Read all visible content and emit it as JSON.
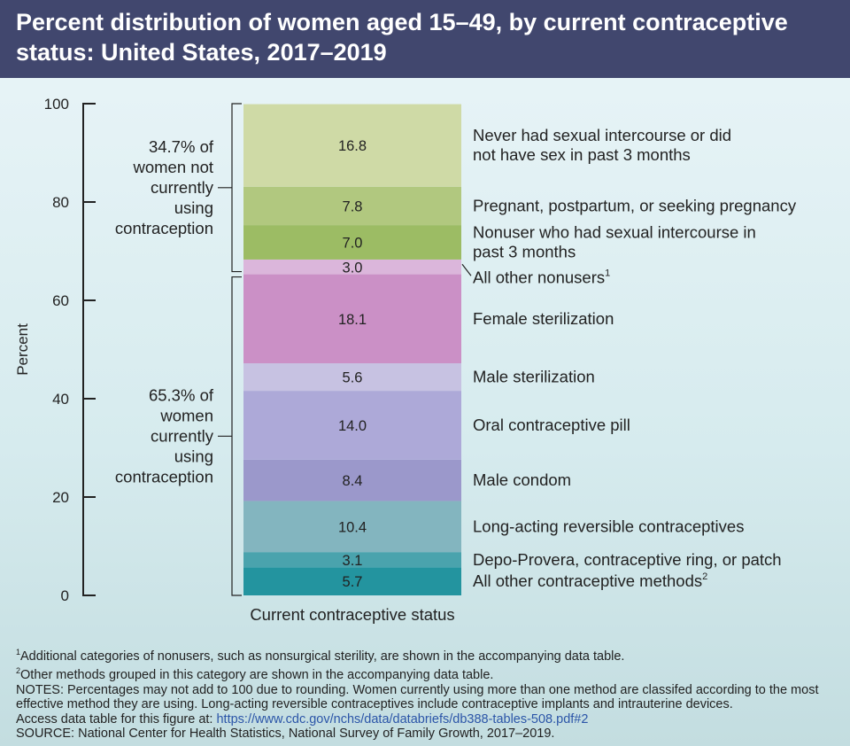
{
  "header": {
    "title": "Percent distribution of women aged 15–49, by current contraceptive status: United States, 2017–2019"
  },
  "chart_data": {
    "type": "bar",
    "stacked": true,
    "ylabel": "Percent",
    "xlabel": "Current contraceptive status",
    "ylim": [
      0,
      100
    ],
    "yticks": [
      0,
      20,
      40,
      60,
      80,
      100
    ],
    "segments": [
      {
        "name": "All other contraceptive methods",
        "sup": "2",
        "value": 5.7,
        "label": "5.7",
        "color": "#23949f"
      },
      {
        "name": "Depo-Provera, contraceptive ring, or patch",
        "value": 3.1,
        "label": "3.1",
        "color": "#4aa3ad"
      },
      {
        "name": "Long-acting reversible contraceptives",
        "value": 10.4,
        "label": "10.4",
        "color": "#83b5bf"
      },
      {
        "name": "Male condom",
        "value": 8.4,
        "label": "8.4",
        "color": "#9b98cb"
      },
      {
        "name": "Oral contraceptive pill",
        "value": 14.0,
        "label": "14.0",
        "color": "#ada9d8"
      },
      {
        "name": "Male sterilization",
        "value": 5.6,
        "label": "5.6",
        "color": "#c7c2e2"
      },
      {
        "name": "Female sterilization",
        "value": 18.1,
        "label": "18.1",
        "color": "#cb90c6"
      },
      {
        "name": "All other nonusers",
        "sup": "1",
        "value": 3.0,
        "label": "3.0",
        "color": "#dbb6db"
      },
      {
        "name": "Nonuser who had sexual intercourse in past 3 months",
        "value": 7.0,
        "label": "7.0",
        "color": "#9cbc64"
      },
      {
        "name": "Pregnant, postpartum, or seeking pregnancy",
        "value": 7.8,
        "label": "7.8",
        "color": "#b1c87f"
      },
      {
        "name": "Never had sexual intercourse or did not have sex in past 3 months",
        "value": 16.8,
        "label": "16.8",
        "color": "#cfdaa6"
      }
    ],
    "groups": [
      {
        "label": "34.7% of women not currently using contraception",
        "from": 65.3,
        "to": 100
      },
      {
        "label": "65.3% of women currently using contraception",
        "from": 0,
        "to": 65.3
      }
    ]
  },
  "footnotes": {
    "note1_sup": "1",
    "note1": "Additional categories of nonusers, such as nonsurgical sterility, are shown in the accompanying data table.",
    "note2_sup": "2",
    "note2": "Other methods grouped in this category are shown in the accompanying data table.",
    "notes": "NOTES: Percentages may not add to 100 due to rounding. Women currently using more than one method are classifed according to the most effective method they are using. Long-acting reversible contraceptives include contraceptive implants and intrauterine devices.",
    "access_prefix": "Access data table for this figure at: ",
    "access_link": "https://www.cdc.gov/nchs/data/databriefs/db388-tables-508.pdf#2",
    "source": "SOURCE: National Center for Health Statistics, National Survey of Family Growth, 2017–2019."
  }
}
